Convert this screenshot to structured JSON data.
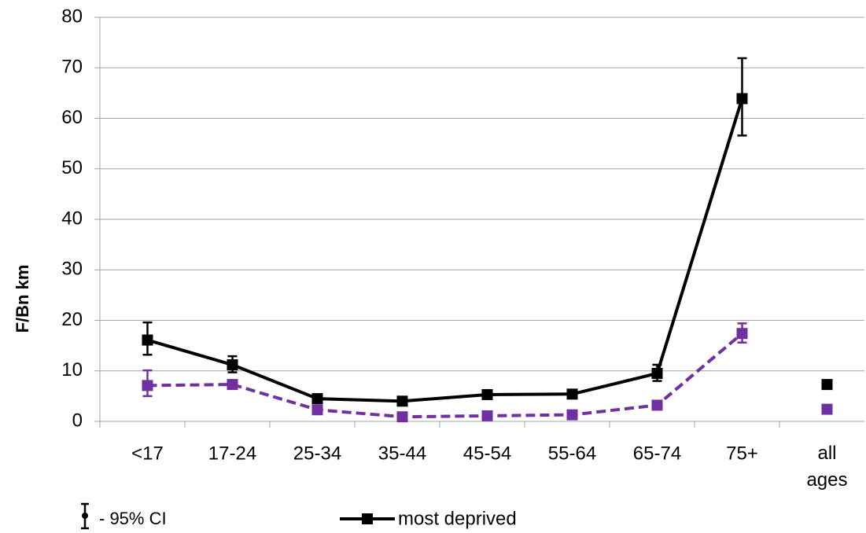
{
  "chart_data": {
    "type": "line",
    "y_label": "F/Bn km",
    "categories": [
      "<17",
      "17-24",
      "25-34",
      "35-44",
      "45-54",
      "55-64",
      "65-74",
      "75+",
      "all ages"
    ],
    "series": [
      {
        "name": "most deprived",
        "color": "#000000",
        "dash": false,
        "values": [
          16.1,
          11.2,
          4.5,
          4.0,
          5.3,
          5.4,
          9.5,
          63.9,
          null
        ],
        "ci_low": [
          13.2,
          9.7,
          null,
          null,
          null,
          null,
          8.0,
          56.6,
          null
        ],
        "ci_high": [
          19.6,
          12.9,
          null,
          null,
          null,
          null,
          11.2,
          71.9,
          null
        ],
        "all_ages": 7.3
      },
      {
        "color": "#7030a0",
        "dash": true,
        "values": [
          7.1,
          7.3,
          2.3,
          0.9,
          1.1,
          1.3,
          3.2,
          17.4,
          null
        ],
        "ci_low": [
          5.0,
          null,
          null,
          null,
          null,
          null,
          null,
          15.6,
          null
        ],
        "ci_high": [
          10.1,
          null,
          null,
          null,
          null,
          null,
          null,
          19.4,
          null
        ],
        "all_ages": 2.4
      }
    ],
    "ci_legend": "- 95% CI",
    "ylim": [
      0,
      80
    ],
    "yticks": [
      0,
      10,
      20,
      30,
      40,
      50,
      60,
      70,
      80
    ],
    "grid": true
  }
}
